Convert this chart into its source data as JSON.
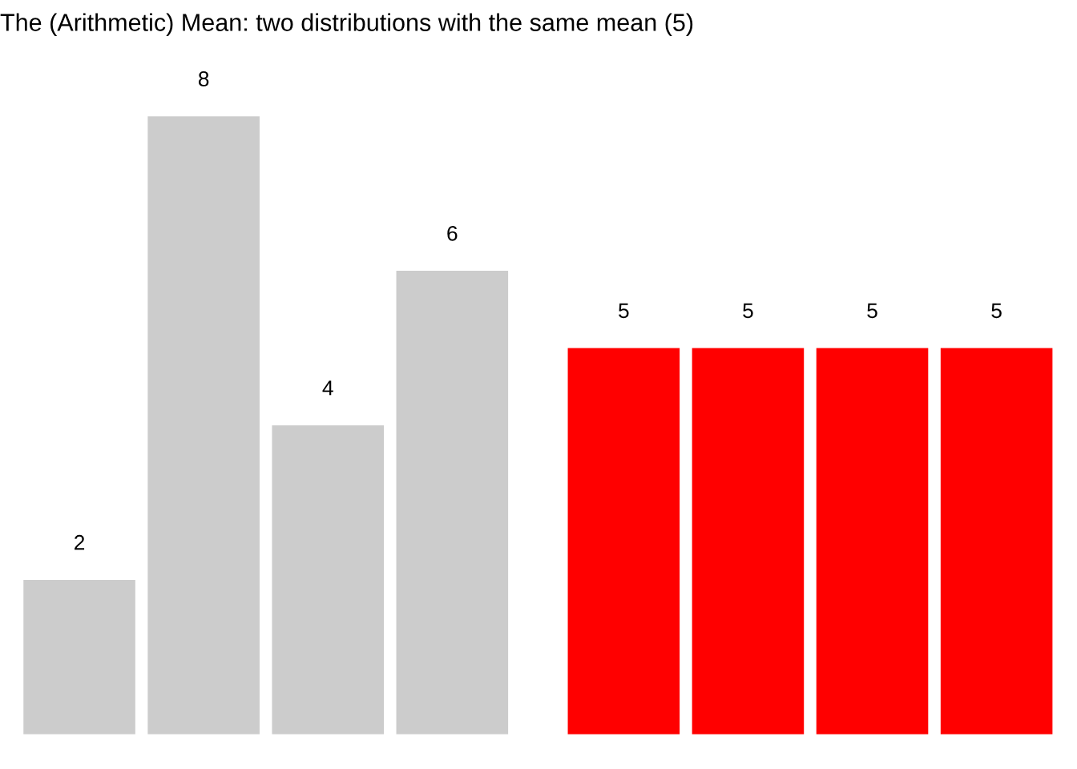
{
  "chart_data": [
    {
      "type": "bar",
      "title": "The (Arithmetic) Mean: two distributions with the same mean (5)",
      "categories": [
        null,
        null,
        null,
        null
      ],
      "values": [
        2,
        8,
        4,
        6
      ],
      "color": "#cccccc",
      "data_labels": true,
      "tick_labels": false,
      "grid": false,
      "legend": false
    },
    {
      "type": "bar",
      "categories": [
        null,
        null,
        null,
        null
      ],
      "values": [
        5,
        5,
        5,
        5
      ],
      "color": "#ff0000",
      "data_labels": true,
      "tick_labels": false,
      "grid": false,
      "legend": false
    }
  ]
}
